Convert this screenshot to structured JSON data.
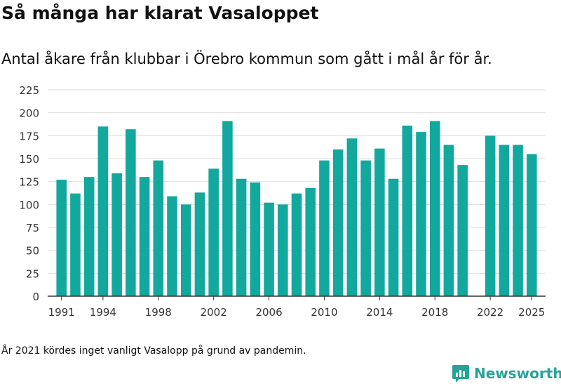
{
  "title": "Så många har klarat Vasaloppet",
  "subtitle": "Antal åkare från klubbar i Örebro kommun som gått i mål år för år.",
  "footnote": "År 2021 kördes inget vanligt Vasalopp på grund av pandemin.",
  "brand": {
    "name": "Newsworthy",
    "color": "#27a397"
  },
  "colors": {
    "bar": "#13a89e",
    "grid": "#dddddd",
    "axis": "#333333"
  },
  "chart_data": {
    "type": "bar",
    "title": "Så många har klarat Vasaloppet",
    "xlabel": "",
    "ylabel": "",
    "ylim": [
      0,
      225
    ],
    "yticks": [
      0,
      25,
      50,
      75,
      100,
      125,
      150,
      175,
      200,
      225
    ],
    "xlim": [
      1990,
      2026
    ],
    "xticks": [
      "1991",
      "1994",
      "1998",
      "2002",
      "2006",
      "2010",
      "2014",
      "2018",
      "2022",
      "2025"
    ],
    "grid": true,
    "series": [
      {
        "name": "Antal åkare",
        "x": [
          1991,
          1992,
          1993,
          1994,
          1995,
          1996,
          1997,
          1998,
          1999,
          2000,
          2001,
          2002,
          2003,
          2004,
          2005,
          2006,
          2007,
          2008,
          2009,
          2010,
          2011,
          2012,
          2013,
          2014,
          2015,
          2016,
          2017,
          2018,
          2019,
          2020,
          2022,
          2023,
          2024,
          2025
        ],
        "values": [
          127,
          112,
          130,
          185,
          134,
          182,
          130,
          148,
          109,
          100,
          113,
          139,
          191,
          128,
          124,
          102,
          100,
          112,
          118,
          148,
          160,
          172,
          148,
          161,
          128,
          186,
          179,
          191,
          165,
          143,
          175,
          165,
          165,
          155
        ]
      }
    ]
  }
}
